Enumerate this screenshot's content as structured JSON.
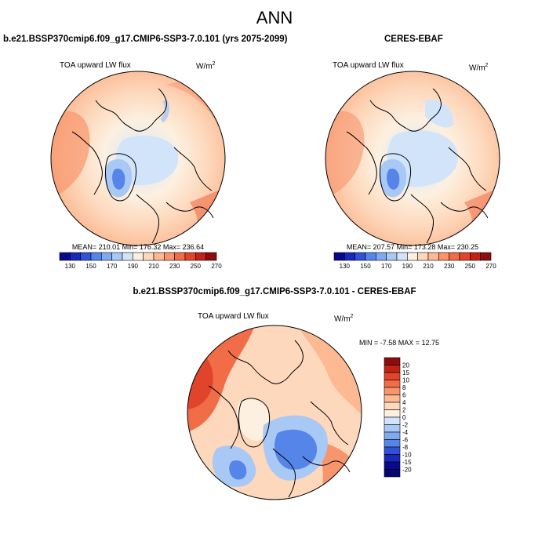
{
  "figure": {
    "title": "ANN"
  },
  "chart_data": [
    {
      "type": "heatmap",
      "projection": "north polar stereographic",
      "panel_title": "b.e21.BSSP370cmip6.f09_g17.CMIP6-SSP3-7.0.101 (yrs 2075-2099)",
      "variable": "TOA upward LW flux",
      "units_base": "W/m",
      "units_exp": "2",
      "stats_text": "MEAN= 210.01  Min= 176.32  Max= 236.64",
      "mean": 210.01,
      "min": 176.32,
      "max": 236.64,
      "colorbar": {
        "orientation": "horizontal",
        "tick_labels": [
          "130",
          "150",
          "170",
          "190",
          "210",
          "230",
          "250",
          "270"
        ],
        "colors": [
          "#08088c",
          "#1a28b8",
          "#2f52d8",
          "#5585e8",
          "#80aaf0",
          "#a8c8f5",
          "#d2e4fa",
          "#fdf0e0",
          "#fdd8bc",
          "#fcb992",
          "#f8956c",
          "#f16d48",
          "#e0452c",
          "#c12216",
          "#8e0c0c"
        ]
      }
    },
    {
      "type": "heatmap",
      "projection": "north polar stereographic",
      "panel_title": "CERES-EBAF",
      "variable": "TOA upward LW flux",
      "units_base": "W/m",
      "units_exp": "2",
      "stats_text": "MEAN= 207.57  Min= 173.28  Max= 230.25",
      "mean": 207.57,
      "min": 173.28,
      "max": 230.25,
      "colorbar": {
        "orientation": "horizontal",
        "tick_labels": [
          "130",
          "150",
          "170",
          "190",
          "210",
          "230",
          "250",
          "270"
        ],
        "colors": [
          "#08088c",
          "#1a28b8",
          "#2f52d8",
          "#5585e8",
          "#80aaf0",
          "#a8c8f5",
          "#d2e4fa",
          "#fdf0e0",
          "#fdd8bc",
          "#fcb992",
          "#f8956c",
          "#f16d48",
          "#e0452c",
          "#c12216",
          "#8e0c0c"
        ]
      }
    },
    {
      "type": "heatmap",
      "projection": "north polar stereographic",
      "panel_title": "b.e21.BSSP370cmip6.f09_g17.CMIP6-SSP3-7.0.101 - CERES-EBAF",
      "variable": "TOA upward LW flux",
      "units_base": "W/m",
      "units_exp": "2",
      "stats_text": "MIN =  -7.58 MAX =  12.75",
      "min": -7.58,
      "max": 12.75,
      "colorbar": {
        "orientation": "vertical",
        "tick_labels": [
          "20",
          "15",
          "10",
          "8",
          "6",
          "4",
          "2",
          "0",
          "-2",
          "-4",
          "-6",
          "-8",
          "-10",
          "-15",
          "-20"
        ],
        "colors": [
          "#8e0c0c",
          "#c12216",
          "#e0452c",
          "#f16d48",
          "#f8956c",
          "#fcb992",
          "#fdd8bc",
          "#fdf0e0",
          "#d2e4fa",
          "#a8c8f5",
          "#80aaf0",
          "#5585e8",
          "#2f52d8",
          "#1a28b8",
          "#08088c",
          "#060670"
        ]
      }
    }
  ]
}
